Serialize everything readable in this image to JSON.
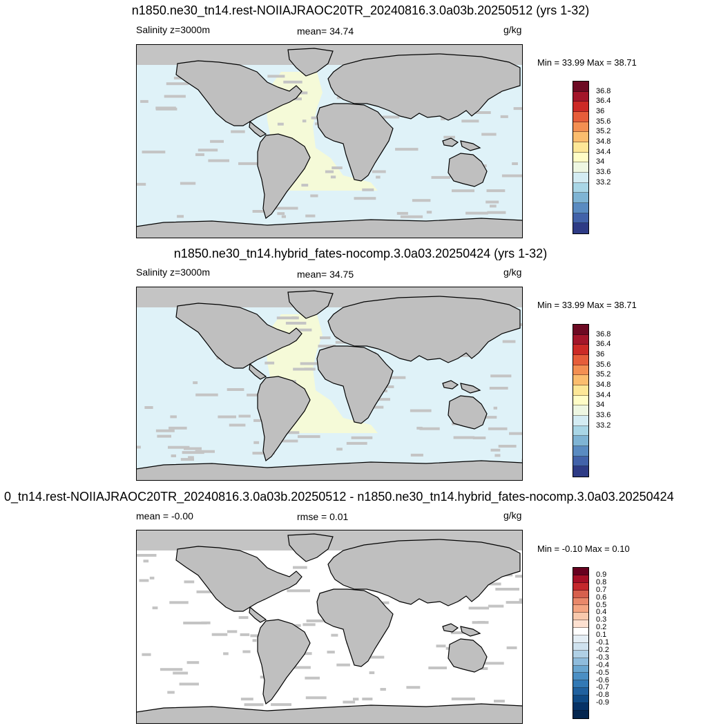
{
  "panels": [
    {
      "title": "n1850.ne30_tn14.rest-NOIIAJRAOC20TR_20240816.3.0a03b.20250512 (yrs 1-32)",
      "left_label": "Salinity z=3000m",
      "center_label": "mean=  34.74",
      "units": "g/kg",
      "minmax": "Min =  33.99 Max =  38.71",
      "ocean_fill": "#dff2f8",
      "atlantic_fill": "#f5fad8",
      "colorbar": {
        "colors": [
          "#6d0a23",
          "#a3162a",
          "#cc2a26",
          "#e65d3a",
          "#f38f52",
          "#fbbd6e",
          "#fde797",
          "#fffdc6",
          "#eef7e2",
          "#d4ecf3",
          "#a9d6e6",
          "#7fb4d4",
          "#5a8bc1",
          "#4262a9",
          "#2e3b85"
        ],
        "labels": [
          "36.8",
          "36.4",
          "36",
          "35.6",
          "35.2",
          "34.8",
          "34.4",
          "34",
          "33.6",
          "33.2"
        ]
      }
    },
    {
      "title": "n1850.ne30_tn14.hybrid_fates-nocomp.3.0a03.20250424 (yrs 1-32)",
      "left_label": "Salinity z=3000m",
      "center_label": "mean=  34.75",
      "units": "g/kg",
      "minmax": "Min =  33.99 Max =  38.71",
      "ocean_fill": "#dff2f8",
      "atlantic_fill": "#f5fad8",
      "colorbar": {
        "colors": [
          "#6d0a23",
          "#a3162a",
          "#cc2a26",
          "#e65d3a",
          "#f38f52",
          "#fbbd6e",
          "#fde797",
          "#fffdc6",
          "#eef7e2",
          "#d4ecf3",
          "#a9d6e6",
          "#7fb4d4",
          "#5a8bc1",
          "#4262a9",
          "#2e3b85"
        ],
        "labels": [
          "36.8",
          "36.4",
          "36",
          "35.6",
          "35.2",
          "34.8",
          "34.4",
          "34",
          "33.6",
          "33.2"
        ]
      }
    },
    {
      "title": "0_tn14.rest-NOIIAJRAOC20TR_20240816.3.0a03b.20250512 - n1850.ne30_tn14.hybrid_fates-nocomp.3.0a03.20250424",
      "left_label": "mean =  -0.00",
      "center_label": "rmse =   0.01",
      "units": "g/kg",
      "minmax": "Min =  -0.10 Max =   0.10",
      "ocean_fill": "#ffffff",
      "atlantic_fill": "#ffffff",
      "colorbar": {
        "colors": [
          "#67001f",
          "#a50f26",
          "#c4282c",
          "#d6604d",
          "#e9886a",
          "#f4a582",
          "#f8c9ad",
          "#fde0d0",
          "#ffffff",
          "#e4eef5",
          "#cfe2ef",
          "#b0d0e5",
          "#8fbcdc",
          "#6aa6d0",
          "#4b8fc4",
          "#3279b5",
          "#20619f",
          "#0f4a85",
          "#063266",
          "#05264f"
        ],
        "labels": [
          "0.9",
          "0.8",
          "0.7",
          "0.6",
          "0.5",
          "0.4",
          "0.3",
          "0.2",
          "0.1",
          "-0.1",
          "-0.2",
          "-0.3",
          "-0.4",
          "-0.5",
          "-0.6",
          "-0.7",
          "-0.8",
          "-0.9"
        ]
      }
    }
  ],
  "land_fill": "#bfbfbf",
  "mask_fill": "#c4c4c4"
}
